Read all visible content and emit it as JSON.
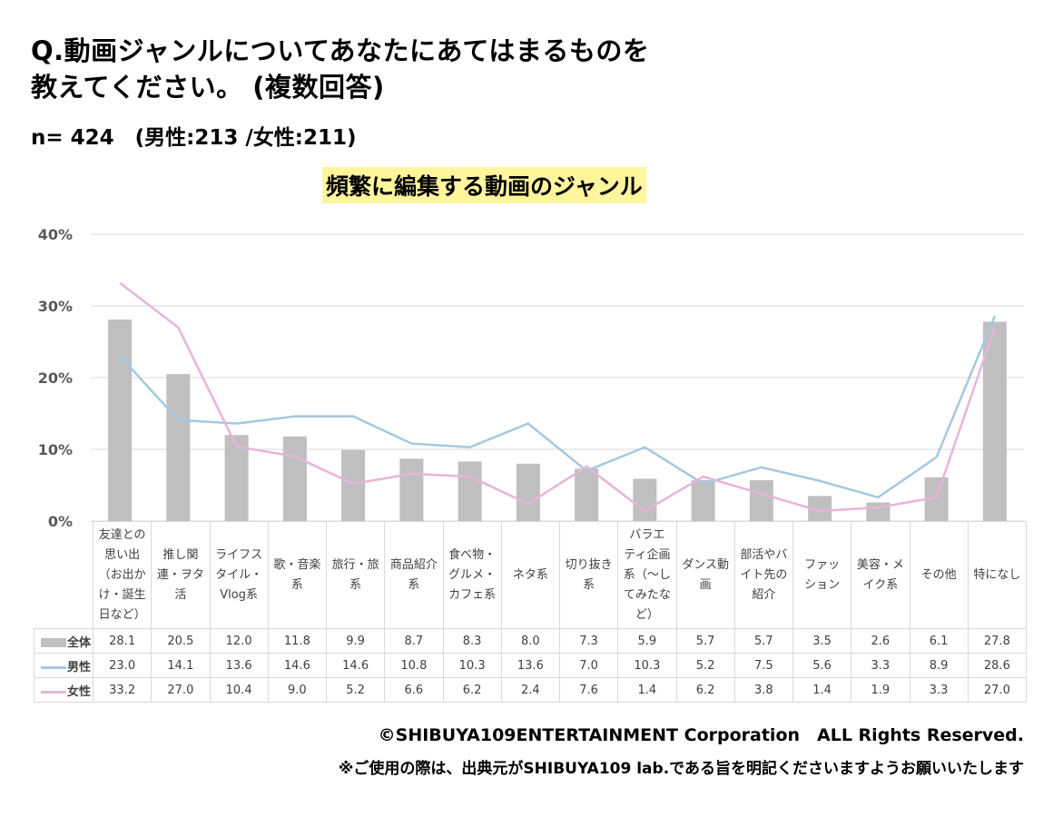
{
  "header": {
    "title": "Q.動画ジャンルについてあなたにあてはまるものを\n教えてください。 (複数回答)",
    "sample": "n= 424　(男性:213 /女性:211)",
    "subtitle": "頻繁に編集する動画のジャンル"
  },
  "chart_data": {
    "type": "bar",
    "title": "頻繁に編集する動画のジャンル",
    "ylim": [
      0,
      40
    ],
    "yticks": [
      "0%",
      "10%",
      "20%",
      "30%",
      "40%"
    ],
    "categories": [
      "友達との\n思い出\n（お出か\nけ・誕生\n日など）",
      "推し関\n連・ヲタ\n活",
      "ライフス\nタイル・\nVlog系",
      "歌・音楽\n系",
      "旅行・旅\n系",
      "商品紹介\n系",
      "食べ物・\nグルメ・\nカフェ系",
      "ネタ系",
      "切り抜き\n系",
      "バラエ\nティ企画\n系（〜し\nてみたな\nど）",
      "ダンス動\n画",
      "部活やバ\nイト先の\n紹介",
      "ファッ\nション",
      "美容・メ\nイク系",
      "その他",
      "特になし"
    ],
    "series": [
      {
        "name": "全体",
        "type": "bar",
        "color": "#bfbfbf",
        "values": [
          28.1,
          20.5,
          12.0,
          11.8,
          9.9,
          8.7,
          8.3,
          8.0,
          7.3,
          5.9,
          5.7,
          5.7,
          3.5,
          2.6,
          6.1,
          27.8
        ]
      },
      {
        "name": "男性",
        "type": "line",
        "color": "#a6c8e0",
        "values": [
          23.0,
          14.1,
          13.6,
          14.6,
          14.6,
          10.8,
          10.3,
          13.6,
          7.0,
          10.3,
          5.2,
          7.5,
          5.6,
          3.3,
          8.9,
          28.6
        ]
      },
      {
        "name": "女性",
        "type": "line",
        "color": "#e8b4d8",
        "values": [
          33.2,
          27.0,
          10.4,
          9.0,
          5.2,
          6.6,
          6.2,
          2.4,
          7.6,
          1.4,
          6.2,
          3.8,
          1.4,
          1.9,
          3.3,
          27.0
        ]
      }
    ],
    "grid": true
  },
  "footer": {
    "copyright": "©SHIBUYA109ENTERTAINMENT Corporation　ALL Rights Reserved.",
    "note": "※ご使用の際は、出典元がSHIBUYA109 lab.である旨を明記くださいますようお願いいたします"
  }
}
